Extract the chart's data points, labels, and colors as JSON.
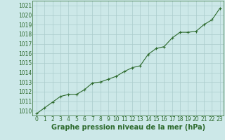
{
  "x": [
    0,
    1,
    2,
    3,
    4,
    5,
    6,
    7,
    8,
    9,
    10,
    11,
    12,
    13,
    14,
    15,
    16,
    17,
    18,
    19,
    20,
    21,
    22,
    23
  ],
  "y": [
    1009.7,
    1010.3,
    1010.9,
    1011.5,
    1011.7,
    1011.7,
    1012.2,
    1012.9,
    1013.0,
    1013.3,
    1013.6,
    1014.1,
    1014.5,
    1014.7,
    1015.9,
    1016.5,
    1016.7,
    1017.6,
    1018.2,
    1018.2,
    1018.3,
    1019.0,
    1019.5,
    1020.7
  ],
  "ylim": [
    1009.5,
    1021.5
  ],
  "yticks": [
    1010,
    1011,
    1012,
    1013,
    1014,
    1015,
    1016,
    1017,
    1018,
    1019,
    1020,
    1021
  ],
  "xticks": [
    0,
    1,
    2,
    3,
    4,
    5,
    6,
    7,
    8,
    9,
    10,
    11,
    12,
    13,
    14,
    15,
    16,
    17,
    18,
    19,
    20,
    21,
    22,
    23
  ],
  "xlabel": "Graphe pression niveau de la mer (hPa)",
  "line_color": "#2d6a2d",
  "marker": "+",
  "marker_color": "#2d6a2d",
  "bg_color": "#cce8e8",
  "grid_color": "#aacccc",
  "tick_fontsize": 5.5,
  "xlabel_fontsize": 7.0,
  "linewidth": 0.8,
  "markersize": 3.5
}
